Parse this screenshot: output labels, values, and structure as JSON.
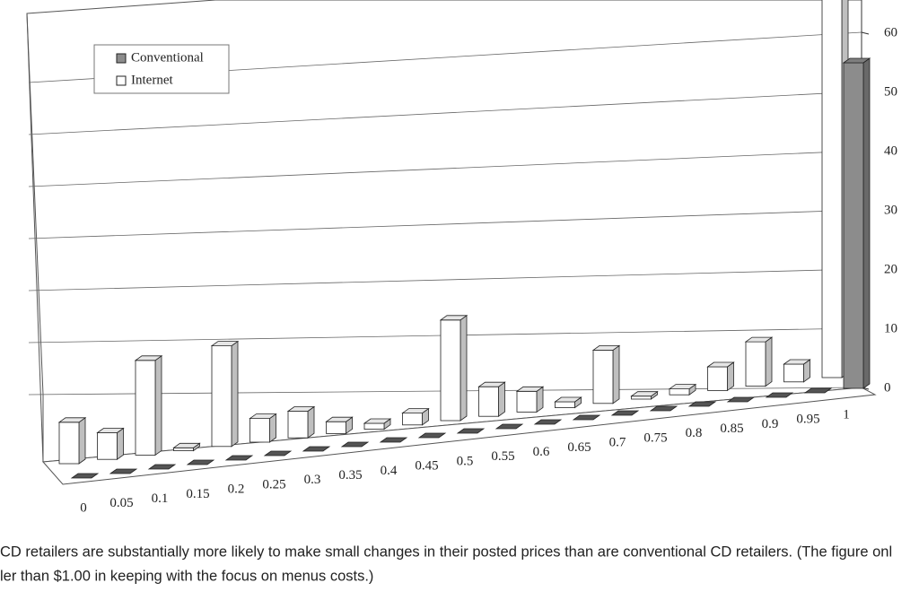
{
  "chart_data": {
    "type": "bar3d",
    "categories": [
      "0",
      "0.05",
      "0.1",
      "0.15",
      "0.2",
      "0.25",
      "0.3",
      "0.35",
      "0.4",
      "0.45",
      "0.5",
      "0.55",
      "0.6",
      "0.65",
      "0.7",
      "0.75",
      "0.8",
      "0.85",
      "0.9",
      "0.95",
      "1"
    ],
    "series": [
      {
        "name": "Conventional",
        "color": "#8c8c8c",
        "values": [
          0,
          0,
          0,
          0,
          0,
          0,
          0,
          0,
          0,
          0,
          0,
          0,
          0,
          0,
          0,
          0,
          0,
          0,
          0,
          0,
          55
        ]
      },
      {
        "name": "Internet",
        "color": "#ffffff",
        "values": [
          7,
          4.5,
          16,
          0.5,
          17,
          4,
          4.5,
          2,
          1,
          2,
          17,
          5,
          3.5,
          1,
          9,
          0.5,
          1,
          4,
          7.5,
          3,
          70
        ]
      }
    ],
    "ylim": [
      0,
      65
    ],
    "yticks": [
      0,
      10,
      20,
      30,
      40,
      50,
      60
    ],
    "grid": true,
    "legend": "upper left",
    "caption": [
      "CD retailers are substantially more likely to make small changes in their posted prices than are conventional CD retailers. (The figure onl",
      "ler than $1.00 in keeping with the focus on menus costs.)"
    ]
  }
}
